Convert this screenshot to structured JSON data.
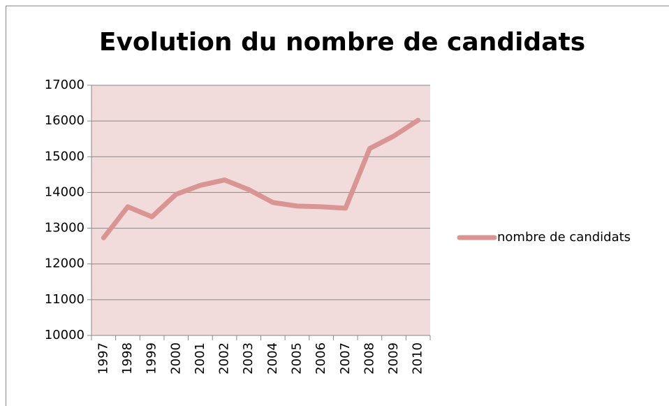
{
  "chart_data": {
    "type": "line",
    "title": "Evolution du nombre de candidats",
    "categories": [
      "1997",
      "1998",
      "1999",
      "2000",
      "2001",
      "2002",
      "2003",
      "2004",
      "2005",
      "2006",
      "2007",
      "2008",
      "2009",
      "2010"
    ],
    "series": [
      {
        "name": "nombre de candidats",
        "color": "#d99594",
        "values": [
          12730,
          13600,
          13320,
          13950,
          14200,
          14350,
          14080,
          13720,
          13620,
          13600,
          13560,
          15230,
          15580,
          16020
        ]
      }
    ],
    "ylim": [
      10000,
      17000
    ],
    "yticks": [
      10000,
      11000,
      12000,
      13000,
      14000,
      15000,
      16000,
      17000
    ],
    "grid": true,
    "legend": "right"
  }
}
